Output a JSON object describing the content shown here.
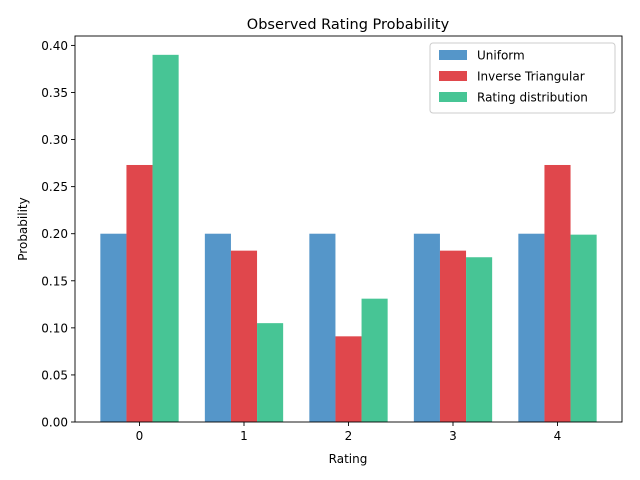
{
  "chart_data": {
    "type": "bar",
    "title": "Observed Rating Probability",
    "xlabel": "Rating",
    "ylabel": "Probability",
    "categories": [
      "0",
      "1",
      "2",
      "3",
      "4"
    ],
    "ylim": [
      0,
      0.41
    ],
    "yticks": [
      "0.00",
      "0.05",
      "0.10",
      "0.15",
      "0.20",
      "0.25",
      "0.30",
      "0.35",
      "0.40"
    ],
    "grid": false,
    "legend_position": "top-right",
    "series": [
      {
        "name": "Uniform",
        "color": "#5596c9",
        "values": [
          0.2,
          0.2,
          0.2,
          0.2,
          0.2
        ]
      },
      {
        "name": "Inverse Triangular",
        "color": "#e0474c",
        "values": [
          0.273,
          0.182,
          0.091,
          0.182,
          0.273
        ]
      },
      {
        "name": "Rating distribution",
        "color": "#47c595",
        "values": [
          0.39,
          0.105,
          0.131,
          0.175,
          0.199
        ]
      }
    ]
  }
}
